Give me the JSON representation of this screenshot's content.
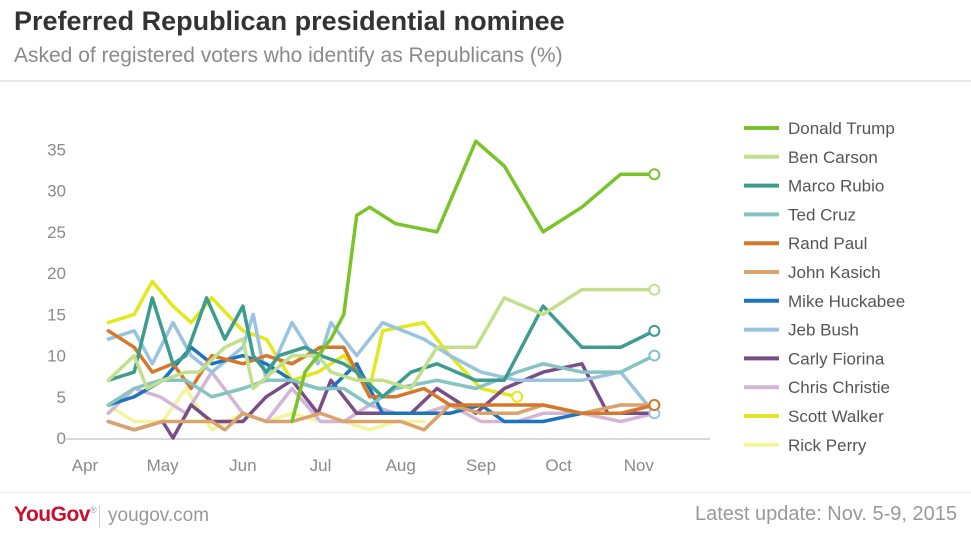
{
  "header": {
    "title": "Preferred Republican presidential nominee",
    "subtitle": "Asked of registered voters who identify as Republicans (%)"
  },
  "footer": {
    "logo": "YouGov",
    "site": "yougov.com",
    "update": "Latest update: Nov. 5-9, 2015"
  },
  "chart_data": {
    "type": "line",
    "title": "Preferred Republican presidential nominee",
    "subtitle": "Asked of registered voters who identify as Republicans (%)",
    "xlabel": "",
    "ylabel": "",
    "x_ticks": [
      "Apr",
      "May",
      "Jun",
      "Jul",
      "Aug",
      "Sep",
      "Oct",
      "Nov"
    ],
    "y_ticks": [
      0,
      5,
      10,
      15,
      20,
      25,
      30,
      35
    ],
    "ylim": [
      0,
      37
    ],
    "xlim": [
      "2015-04-01",
      "2015-11-20"
    ],
    "grid": false,
    "legend": "right",
    "series": [
      {
        "name": "Donald Trump",
        "color": "#7ac42a",
        "end_marker": true,
        "points": [
          [
            "2015-06-20",
            2
          ],
          [
            "2015-06-25",
            8
          ],
          [
            "2015-07-05",
            12
          ],
          [
            "2015-07-10",
            15
          ],
          [
            "2015-07-15",
            27
          ],
          [
            "2015-07-20",
            28
          ],
          [
            "2015-07-30",
            26
          ],
          [
            "2015-08-15",
            25
          ],
          [
            "2015-08-30",
            36
          ],
          [
            "2015-09-10",
            33
          ],
          [
            "2015-09-25",
            25
          ],
          [
            "2015-10-10",
            28
          ],
          [
            "2015-10-25",
            32
          ],
          [
            "2015-11-07",
            32
          ]
        ]
      },
      {
        "name": "Ben Carson",
        "color": "#c2e08c",
        "end_marker": true,
        "points": [
          [
            "2015-04-10",
            7
          ],
          [
            "2015-04-20",
            10
          ],
          [
            "2015-04-25",
            6
          ],
          [
            "2015-05-01",
            7
          ],
          [
            "2015-05-10",
            8
          ],
          [
            "2015-05-15",
            8
          ],
          [
            "2015-05-25",
            11
          ],
          [
            "2015-06-01",
            12
          ],
          [
            "2015-06-05",
            6
          ],
          [
            "2015-06-20",
            10
          ],
          [
            "2015-06-30",
            10
          ],
          [
            "2015-07-05",
            8
          ],
          [
            "2015-07-15",
            7
          ],
          [
            "2015-07-25",
            7
          ],
          [
            "2015-08-05",
            6
          ],
          [
            "2015-08-15",
            11
          ],
          [
            "2015-08-30",
            11
          ],
          [
            "2015-09-10",
            17
          ],
          [
            "2015-09-25",
            15
          ],
          [
            "2015-10-10",
            18
          ],
          [
            "2015-10-25",
            18
          ],
          [
            "2015-11-07",
            18
          ]
        ]
      },
      {
        "name": "Marco Rubio",
        "color": "#3d9b8f",
        "end_marker": true,
        "points": [
          [
            "2015-04-10",
            7
          ],
          [
            "2015-04-20",
            8
          ],
          [
            "2015-04-27",
            17
          ],
          [
            "2015-05-05",
            9
          ],
          [
            "2015-05-10",
            10
          ],
          [
            "2015-05-18",
            17
          ],
          [
            "2015-05-25",
            12
          ],
          [
            "2015-06-01",
            16
          ],
          [
            "2015-06-05",
            10
          ],
          [
            "2015-06-10",
            8
          ],
          [
            "2015-06-15",
            10
          ],
          [
            "2015-06-25",
            11
          ],
          [
            "2015-07-01",
            10
          ],
          [
            "2015-07-10",
            9
          ],
          [
            "2015-07-15",
            8
          ],
          [
            "2015-07-25",
            5
          ],
          [
            "2015-08-05",
            8
          ],
          [
            "2015-08-15",
            9
          ],
          [
            "2015-08-30",
            7
          ],
          [
            "2015-09-10",
            7
          ],
          [
            "2015-09-25",
            16
          ],
          [
            "2015-10-10",
            11
          ],
          [
            "2015-10-25",
            11
          ],
          [
            "2015-11-07",
            13
          ]
        ]
      },
      {
        "name": "Ted Cruz",
        "color": "#86c3c3",
        "end_marker": true,
        "points": [
          [
            "2015-04-10",
            4
          ],
          [
            "2015-04-20",
            6
          ],
          [
            "2015-04-30",
            7
          ],
          [
            "2015-05-10",
            7
          ],
          [
            "2015-05-20",
            5
          ],
          [
            "2015-06-01",
            6
          ],
          [
            "2015-06-10",
            7
          ],
          [
            "2015-06-20",
            7
          ],
          [
            "2015-06-30",
            6
          ],
          [
            "2015-07-10",
            6
          ],
          [
            "2015-07-20",
            4
          ],
          [
            "2015-07-30",
            6
          ],
          [
            "2015-08-15",
            7
          ],
          [
            "2015-08-30",
            6
          ],
          [
            "2015-09-15",
            8
          ],
          [
            "2015-09-25",
            9
          ],
          [
            "2015-10-10",
            8
          ],
          [
            "2015-10-25",
            8
          ],
          [
            "2015-11-07",
            10
          ]
        ]
      },
      {
        "name": "Rand Paul",
        "color": "#d6782a",
        "end_marker": true,
        "points": [
          [
            "2015-04-10",
            13
          ],
          [
            "2015-04-20",
            11
          ],
          [
            "2015-04-27",
            8
          ],
          [
            "2015-05-05",
            9
          ],
          [
            "2015-05-12",
            6
          ],
          [
            "2015-05-20",
            10
          ],
          [
            "2015-06-01",
            9
          ],
          [
            "2015-06-10",
            10
          ],
          [
            "2015-06-20",
            9
          ],
          [
            "2015-07-01",
            11
          ],
          [
            "2015-07-10",
            11
          ],
          [
            "2015-07-20",
            5
          ],
          [
            "2015-07-30",
            5
          ],
          [
            "2015-08-10",
            6
          ],
          [
            "2015-08-20",
            4
          ],
          [
            "2015-09-10",
            4
          ],
          [
            "2015-09-25",
            4
          ],
          [
            "2015-10-10",
            3
          ],
          [
            "2015-10-25",
            3
          ],
          [
            "2015-11-07",
            4
          ]
        ]
      },
      {
        "name": "John Kasich",
        "color": "#dba26b",
        "end_marker": true,
        "points": [
          [
            "2015-04-10",
            2
          ],
          [
            "2015-04-20",
            1
          ],
          [
            "2015-05-01",
            2
          ],
          [
            "2015-05-10",
            2
          ],
          [
            "2015-05-20",
            2
          ],
          [
            "2015-05-25",
            1
          ],
          [
            "2015-06-01",
            3
          ],
          [
            "2015-06-10",
            2
          ],
          [
            "2015-06-20",
            2
          ],
          [
            "2015-07-01",
            3
          ],
          [
            "2015-07-10",
            2
          ],
          [
            "2015-07-20",
            2
          ],
          [
            "2015-08-01",
            2
          ],
          [
            "2015-08-10",
            1
          ],
          [
            "2015-08-20",
            4
          ],
          [
            "2015-09-01",
            3
          ],
          [
            "2015-09-15",
            3
          ],
          [
            "2015-09-25",
            4
          ],
          [
            "2015-10-10",
            3
          ],
          [
            "2015-10-25",
            4
          ],
          [
            "2015-11-07",
            4
          ]
        ]
      },
      {
        "name": "Mike Huckabee",
        "color": "#1c75bc",
        "end_marker": false,
        "points": [
          [
            "2015-04-10",
            4
          ],
          [
            "2015-04-20",
            5
          ],
          [
            "2015-05-01",
            7
          ],
          [
            "2015-05-12",
            11
          ],
          [
            "2015-05-20",
            9
          ],
          [
            "2015-06-01",
            10
          ],
          [
            "2015-06-10",
            9
          ],
          [
            "2015-06-20",
            7
          ],
          [
            "2015-06-30",
            6
          ],
          [
            "2015-07-05",
            6
          ],
          [
            "2015-07-15",
            9
          ],
          [
            "2015-07-25",
            3
          ],
          [
            "2015-08-10",
            3
          ],
          [
            "2015-08-20",
            3
          ],
          [
            "2015-09-01",
            4
          ],
          [
            "2015-09-10",
            2
          ],
          [
            "2015-09-25",
            2
          ],
          [
            "2015-10-10",
            3
          ]
        ]
      },
      {
        "name": "Jeb Bush",
        "color": "#9ac3df",
        "end_marker": true,
        "points": [
          [
            "2015-04-10",
            12
          ],
          [
            "2015-04-20",
            13
          ],
          [
            "2015-04-27",
            9
          ],
          [
            "2015-05-05",
            14
          ],
          [
            "2015-05-12",
            10
          ],
          [
            "2015-05-20",
            8
          ],
          [
            "2015-06-01",
            11
          ],
          [
            "2015-06-05",
            15
          ],
          [
            "2015-06-10",
            7
          ],
          [
            "2015-06-20",
            14
          ],
          [
            "2015-06-30",
            9
          ],
          [
            "2015-07-05",
            14
          ],
          [
            "2015-07-15",
            10
          ],
          [
            "2015-07-25",
            14
          ],
          [
            "2015-08-10",
            12
          ],
          [
            "2015-08-20",
            10
          ],
          [
            "2015-09-01",
            8
          ],
          [
            "2015-09-15",
            7
          ],
          [
            "2015-09-25",
            7
          ],
          [
            "2015-10-10",
            7
          ],
          [
            "2015-10-25",
            8
          ],
          [
            "2015-11-07",
            3
          ]
        ]
      },
      {
        "name": "Carly Fiorina",
        "color": "#7b4d86",
        "end_marker": false,
        "points": [
          [
            "2015-04-10",
            2
          ],
          [
            "2015-04-20",
            1
          ],
          [
            "2015-05-01",
            2
          ],
          [
            "2015-05-05",
            0
          ],
          [
            "2015-05-12",
            4
          ],
          [
            "2015-05-20",
            2
          ],
          [
            "2015-06-01",
            2
          ],
          [
            "2015-06-10",
            5
          ],
          [
            "2015-06-20",
            7
          ],
          [
            "2015-06-30",
            3
          ],
          [
            "2015-07-05",
            7
          ],
          [
            "2015-07-15",
            3
          ],
          [
            "2015-07-25",
            3
          ],
          [
            "2015-08-05",
            3
          ],
          [
            "2015-08-15",
            6
          ],
          [
            "2015-08-30",
            3
          ],
          [
            "2015-09-10",
            6
          ],
          [
            "2015-09-25",
            8
          ],
          [
            "2015-10-10",
            9
          ],
          [
            "2015-10-20",
            3
          ],
          [
            "2015-11-07",
            3
          ]
        ]
      },
      {
        "name": "Chris Christie",
        "color": "#d3b6d6",
        "end_marker": false,
        "points": [
          [
            "2015-04-10",
            3
          ],
          [
            "2015-04-20",
            6
          ],
          [
            "2015-04-30",
            5
          ],
          [
            "2015-05-10",
            3
          ],
          [
            "2015-05-20",
            8
          ],
          [
            "2015-06-01",
            3
          ],
          [
            "2015-06-10",
            2
          ],
          [
            "2015-06-20",
            6
          ],
          [
            "2015-07-01",
            2
          ],
          [
            "2015-07-10",
            2
          ],
          [
            "2015-07-20",
            4
          ],
          [
            "2015-07-30",
            3
          ],
          [
            "2015-08-10",
            3
          ],
          [
            "2015-08-20",
            4
          ],
          [
            "2015-09-01",
            2
          ],
          [
            "2015-09-15",
            2
          ],
          [
            "2015-09-25",
            3
          ],
          [
            "2015-10-10",
            3
          ],
          [
            "2015-10-25",
            2
          ],
          [
            "2015-11-07",
            3
          ]
        ]
      },
      {
        "name": "Scott Walker",
        "color": "#e3e81e",
        "end_marker": true,
        "points": [
          [
            "2015-04-10",
            14
          ],
          [
            "2015-04-20",
            15
          ],
          [
            "2015-04-27",
            19
          ],
          [
            "2015-05-05",
            16
          ],
          [
            "2015-05-12",
            14
          ],
          [
            "2015-05-20",
            17
          ],
          [
            "2015-06-01",
            13
          ],
          [
            "2015-06-10",
            12
          ],
          [
            "2015-06-20",
            7
          ],
          [
            "2015-06-30",
            8
          ],
          [
            "2015-07-10",
            10
          ],
          [
            "2015-07-20",
            6
          ],
          [
            "2015-07-25",
            13
          ],
          [
            "2015-08-10",
            14
          ],
          [
            "2015-08-20",
            10
          ],
          [
            "2015-09-01",
            6
          ],
          [
            "2015-09-15",
            5
          ]
        ]
      },
      {
        "name": "Rick Perry",
        "color": "#f3f59c",
        "end_marker": false,
        "points": [
          [
            "2015-04-10",
            4
          ],
          [
            "2015-04-20",
            2
          ],
          [
            "2015-05-01",
            2
          ],
          [
            "2015-05-10",
            6
          ],
          [
            "2015-05-20",
            1
          ],
          [
            "2015-06-01",
            3
          ],
          [
            "2015-06-10",
            2
          ],
          [
            "2015-06-20",
            3
          ],
          [
            "2015-07-01",
            2
          ],
          [
            "2015-07-10",
            2
          ],
          [
            "2015-07-20",
            1
          ],
          [
            "2015-07-30",
            2
          ],
          [
            "2015-08-10",
            2
          ]
        ]
      }
    ]
  }
}
